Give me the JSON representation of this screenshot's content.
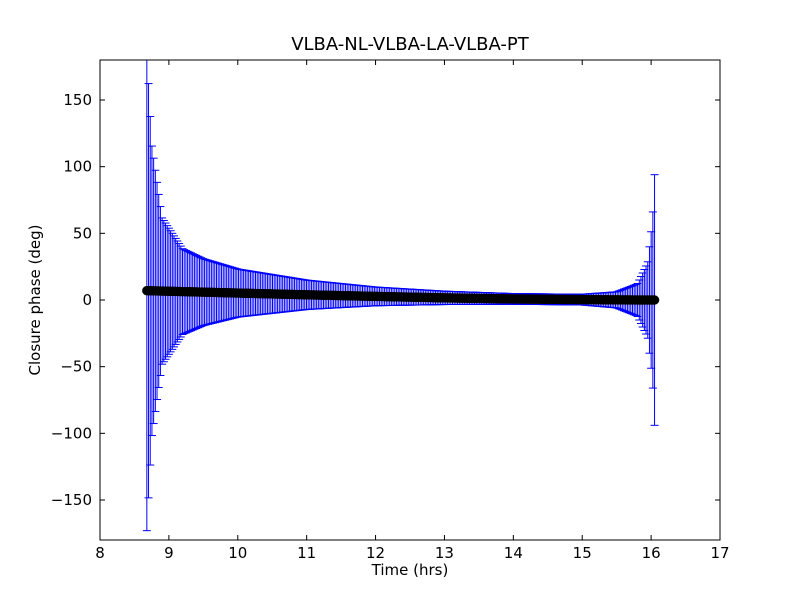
{
  "chart_data": {
    "type": "errorbar",
    "title": "VLBA-NL-VLBA-LA-VLBA-PT",
    "xlabel": "Time (hrs)",
    "ylabel": "Closure phase (deg)",
    "xlim": [
      8,
      17
    ],
    "ylim": [
      -180,
      180
    ],
    "xticks": [
      8,
      9,
      10,
      11,
      12,
      13,
      14,
      15,
      16,
      17
    ],
    "yticks": [
      -150,
      -100,
      -50,
      0,
      50,
      100,
      150
    ],
    "ytick_labels": [
      "−150",
      "−100",
      "−50",
      "0",
      "50",
      "100",
      "150"
    ],
    "grid": false,
    "series": [
      {
        "marker": "circle",
        "color": "#000000",
        "error_color": "#0000ff",
        "x_start": 8.68,
        "x_end": 16.05,
        "n_points": 300,
        "points": [
          {
            "x": 8.68,
            "y": 7.0,
            "yerr": 180
          },
          {
            "x": 8.75,
            "y": 6.9,
            "yerr": 110
          },
          {
            "x": 8.9,
            "y": 6.7,
            "yerr": 55
          },
          {
            "x": 9.2,
            "y": 6.3,
            "yerr": 32
          },
          {
            "x": 9.5,
            "y": 5.9,
            "yerr": 25
          },
          {
            "x": 10.0,
            "y": 5.2,
            "yerr": 18
          },
          {
            "x": 11.0,
            "y": 3.9,
            "yerr": 11
          },
          {
            "x": 12.0,
            "y": 2.7,
            "yerr": 7
          },
          {
            "x": 13.0,
            "y": 1.6,
            "yerr": 5
          },
          {
            "x": 14.0,
            "y": 0.8,
            "yerr": 4
          },
          {
            "x": 15.0,
            "y": 0.3,
            "yerr": 4
          },
          {
            "x": 15.5,
            "y": 0.1,
            "yerr": 6
          },
          {
            "x": 15.8,
            "y": 0.0,
            "yerr": 12
          },
          {
            "x": 15.95,
            "y": 0.0,
            "yerr": 28
          },
          {
            "x": 16.02,
            "y": 0.0,
            "yerr": 60
          },
          {
            "x": 16.05,
            "y": 0.0,
            "yerr": 94
          }
        ]
      }
    ]
  }
}
